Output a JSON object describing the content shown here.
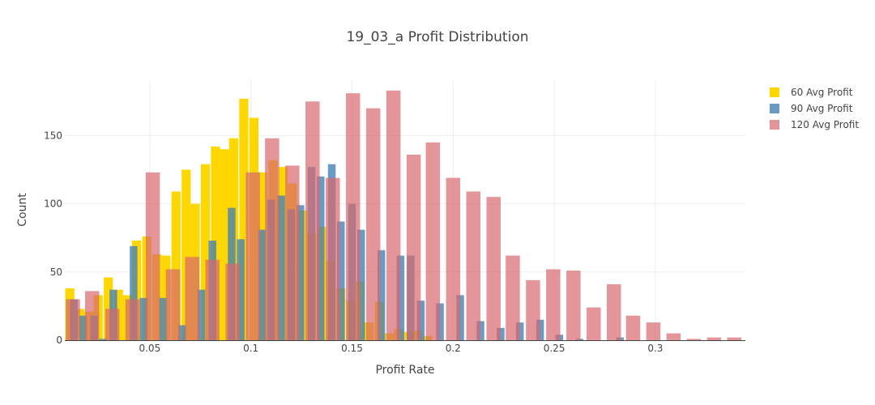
{
  "chart_data": {
    "type": "bar",
    "title": "19_03_a Profit Distribution",
    "xlabel": "Profit Rate",
    "ylabel": "Count",
    "xlim": [
      0.008,
      0.3445
    ],
    "ylim": [
      0,
      190
    ],
    "x_ticks": [
      0.05,
      0.1,
      0.15,
      0.2,
      0.25,
      0.3
    ],
    "x_tick_labels": [
      "0.05",
      "0.1",
      "0.15",
      "0.2",
      "0.25",
      "0.3"
    ],
    "y_ticks": [
      0,
      50,
      100,
      150
    ],
    "y_tick_labels": [
      "0",
      "50",
      "100",
      "150"
    ],
    "grid": true,
    "legend_position": "top-right",
    "series": [
      {
        "name": "60 Avg Profit",
        "color": "#FFD700",
        "opacity": 1,
        "bin_width": 0.0045,
        "bins": [
          [
            0.0105,
            38
          ],
          [
            0.0155,
            23
          ],
          [
            0.02,
            21
          ],
          [
            0.0245,
            33
          ],
          [
            0.0295,
            46
          ],
          [
            0.0345,
            37
          ],
          [
            0.039,
            33
          ],
          [
            0.0435,
            73
          ],
          [
            0.0485,
            76
          ],
          [
            0.0535,
            63
          ],
          [
            0.058,
            62
          ],
          [
            0.063,
            109
          ],
          [
            0.068,
            125
          ],
          [
            0.0725,
            100
          ],
          [
            0.0775,
            129
          ],
          [
            0.0825,
            142
          ],
          [
            0.087,
            140
          ],
          [
            0.0915,
            148
          ],
          [
            0.0965,
            177
          ],
          [
            0.1015,
            163
          ],
          [
            0.106,
            123
          ],
          [
            0.111,
            132
          ],
          [
            0.116,
            127
          ],
          [
            0.1205,
            115
          ],
          [
            0.1255,
            95
          ],
          [
            0.13,
            78
          ],
          [
            0.135,
            83
          ],
          [
            0.1395,
            58
          ],
          [
            0.1445,
            38
          ],
          [
            0.1495,
            29
          ],
          [
            0.154,
            43
          ],
          [
            0.1585,
            13
          ],
          [
            0.1635,
            28
          ],
          [
            0.1685,
            5
          ],
          [
            0.173,
            8
          ],
          [
            0.178,
            6
          ],
          [
            0.1825,
            7
          ],
          [
            0.1875,
            3
          ]
        ]
      },
      {
        "name": "90 Avg Profit",
        "color": "#4682B4",
        "opacity": 0.8,
        "bin_width": 0.0038,
        "bins": [
          [
            0.0125,
            30
          ],
          [
            0.017,
            18
          ],
          [
            0.0225,
            18
          ],
          [
            0.027,
            1
          ],
          [
            0.032,
            37
          ],
          [
            0.0365,
            0
          ],
          [
            0.042,
            69
          ],
          [
            0.047,
            31
          ],
          [
            0.0515,
            0
          ],
          [
            0.0565,
            31
          ],
          [
            0.0615,
            0
          ],
          [
            0.066,
            11
          ],
          [
            0.071,
            0
          ],
          [
            0.0755,
            37
          ],
          [
            0.081,
            73
          ],
          [
            0.0855,
            0
          ],
          [
            0.0905,
            97
          ],
          [
            0.095,
            74
          ],
          [
            0.1005,
            0
          ],
          [
            0.1055,
            81
          ],
          [
            0.11,
            103
          ],
          [
            0.115,
            106
          ],
          [
            0.12,
            96
          ],
          [
            0.1245,
            99
          ],
          [
            0.13,
            127
          ],
          [
            0.1345,
            120
          ],
          [
            0.14,
            129
          ],
          [
            0.1445,
            87
          ],
          [
            0.15,
            100
          ],
          [
            0.1545,
            81
          ],
          [
            0.16,
            0
          ],
          [
            0.1645,
            66
          ],
          [
            0.1695,
            0
          ],
          [
            0.174,
            62
          ],
          [
            0.179,
            62
          ],
          [
            0.184,
            29
          ],
          [
            0.1885,
            0
          ],
          [
            0.1935,
            27
          ],
          [
            0.1985,
            0
          ],
          [
            0.2035,
            33
          ],
          [
            0.208,
            0
          ],
          [
            0.2135,
            14
          ],
          [
            0.218,
            0
          ],
          [
            0.2235,
            9
          ],
          [
            0.228,
            0
          ],
          [
            0.233,
            13
          ],
          [
            0.238,
            0
          ],
          [
            0.243,
            15
          ],
          [
            0.2475,
            0
          ],
          [
            0.2525,
            4
          ],
          [
            0.2575,
            0
          ],
          [
            0.2625,
            1
          ],
          [
            0.267,
            0
          ],
          [
            0.2725,
            0
          ],
          [
            0.277,
            0
          ],
          [
            0.2825,
            2
          ],
          [
            0.287,
            0
          ]
        ]
      },
      {
        "name": "120 Avg Profit",
        "color": "#D9686D",
        "opacity": 0.7,
        "bin_width": 0.007,
        "bins": [
          [
            0.012,
            30
          ],
          [
            0.0215,
            36
          ],
          [
            0.0315,
            23
          ],
          [
            0.0415,
            30
          ],
          [
            0.0515,
            123
          ],
          [
            0.0615,
            52
          ],
          [
            0.071,
            61
          ],
          [
            0.081,
            59
          ],
          [
            0.091,
            56
          ],
          [
            0.101,
            123
          ],
          [
            0.1105,
            148
          ],
          [
            0.1205,
            128
          ],
          [
            0.1305,
            175
          ],
          [
            0.1405,
            119
          ],
          [
            0.1505,
            181
          ],
          [
            0.1605,
            170
          ],
          [
            0.1705,
            183
          ],
          [
            0.1805,
            136
          ],
          [
            0.19,
            145
          ],
          [
            0.2,
            119
          ],
          [
            0.21,
            109
          ],
          [
            0.22,
            105
          ],
          [
            0.2295,
            62
          ],
          [
            0.2395,
            44
          ],
          [
            0.2495,
            52
          ],
          [
            0.2595,
            51
          ],
          [
            0.2695,
            24
          ],
          [
            0.2795,
            41
          ],
          [
            0.289,
            18
          ],
          [
            0.299,
            13
          ],
          [
            0.309,
            5
          ],
          [
            0.319,
            1
          ],
          [
            0.329,
            2
          ],
          [
            0.339,
            2
          ]
        ]
      }
    ]
  }
}
